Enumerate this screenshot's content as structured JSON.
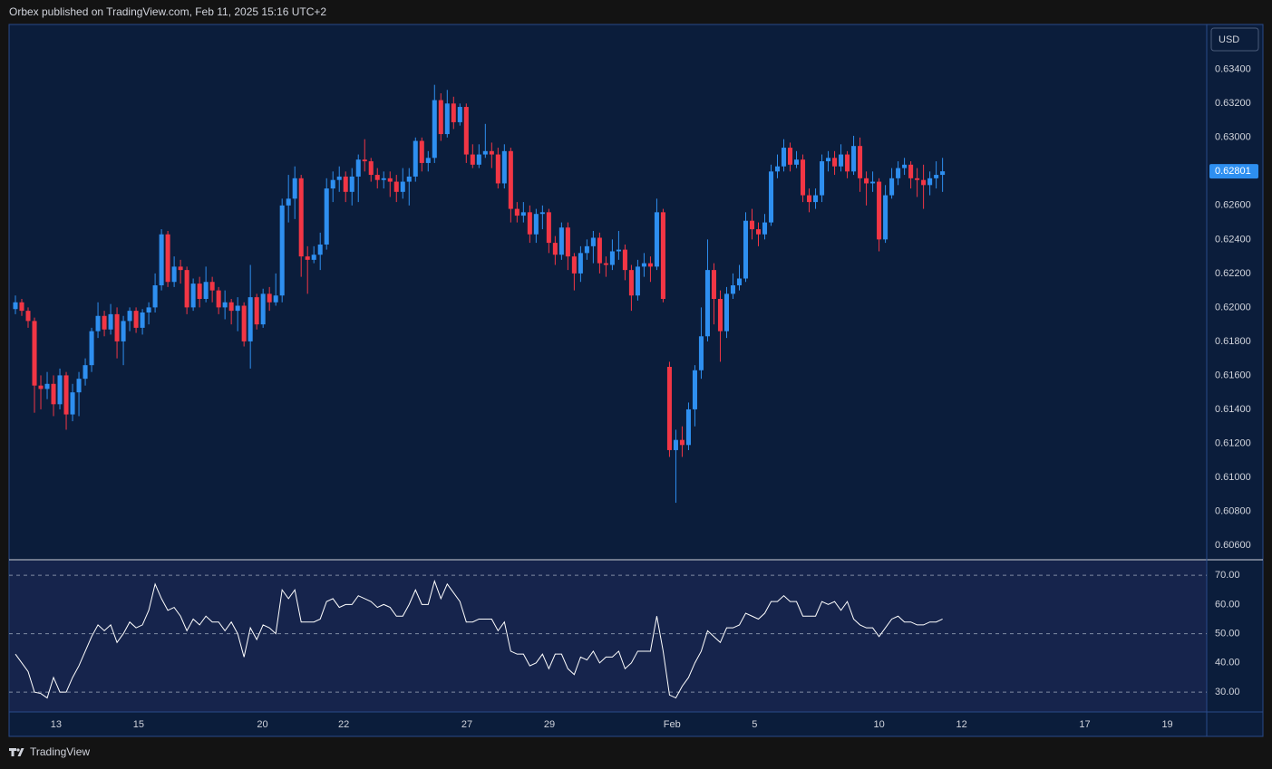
{
  "header": {
    "title": "Orbex published on TradingView.com, Feb 11, 2025 15:16 UTC+2",
    "currency": "USD",
    "brand": "TradingView"
  },
  "chart_data": [
    {
      "type": "candlestick",
      "up_color": "#2e8ff0",
      "down_color": "#f23645",
      "grid": false,
      "xlim": [
        -1,
        187.6
      ],
      "xticks": [
        {
          "value": 6.4,
          "label": "13"
        },
        {
          "value": 19.4,
          "label": "15"
        },
        {
          "value": 38.9,
          "label": "20"
        },
        {
          "value": 51.7,
          "label": "22"
        },
        {
          "value": 71.1,
          "label": "27"
        },
        {
          "value": 84.1,
          "label": "29"
        },
        {
          "value": 103.4,
          "label": "Feb"
        },
        {
          "value": 116.4,
          "label": "5"
        },
        {
          "value": 136,
          "label": "10"
        },
        {
          "value": 149,
          "label": "12"
        },
        {
          "value": 168.4,
          "label": "17"
        },
        {
          "value": 181.4,
          "label": "19"
        }
      ],
      "ylim": [
        0.6052,
        0.6366
      ],
      "yticks": [
        {
          "value": 0.634,
          "label": "0.63400"
        },
        {
          "value": 0.632,
          "label": "0.63200"
        },
        {
          "value": 0.63,
          "label": "0.63000"
        },
        {
          "value": 0.628,
          "label": "0.62800"
        },
        {
          "value": 0.626,
          "label": "0.62600"
        },
        {
          "value": 0.624,
          "label": "0.62400"
        },
        {
          "value": 0.622,
          "label": "0.62200"
        },
        {
          "value": 0.62,
          "label": "0.62000"
        },
        {
          "value": 0.618,
          "label": "0.61800"
        },
        {
          "value": 0.616,
          "label": "0.61600"
        },
        {
          "value": 0.614,
          "label": "0.61400"
        },
        {
          "value": 0.612,
          "label": "0.61200"
        },
        {
          "value": 0.61,
          "label": "0.61000"
        },
        {
          "value": 0.608,
          "label": "0.60800"
        },
        {
          "value": 0.606,
          "label": "0.60600"
        }
      ],
      "last_price_label": "0.62801",
      "open": [
        0.6199,
        0.6203,
        0.6198,
        0.6192,
        0.6154,
        0.6152,
        0.6155,
        0.6143,
        0.616,
        0.6137,
        0.615,
        0.6158,
        0.6166,
        0.6186,
        0.6195,
        0.6187,
        0.6196,
        0.618,
        0.6192,
        0.6198,
        0.6188,
        0.6197,
        0.62,
        0.6213,
        0.6243,
        0.6215,
        0.6224,
        0.6222,
        0.62,
        0.6214,
        0.6205,
        0.6215,
        0.621,
        0.62,
        0.6203,
        0.6198,
        0.6201,
        0.618,
        0.6206,
        0.619,
        0.6208,
        0.6203,
        0.6207,
        0.626,
        0.6264,
        0.6276,
        0.623,
        0.6228,
        0.6231,
        0.6237,
        0.627,
        0.6275,
        0.6277,
        0.6268,
        0.6277,
        0.6287,
        0.6286,
        0.6278,
        0.6275,
        0.6276,
        0.6274,
        0.6268,
        0.6274,
        0.6277,
        0.6298,
        0.6285,
        0.6288,
        0.6322,
        0.6302,
        0.632,
        0.6309,
        0.6318,
        0.629,
        0.6284,
        0.629,
        0.6292,
        0.629,
        0.6273,
        0.6292,
        0.6258,
        0.6254,
        0.6256,
        0.6243,
        0.6255,
        0.6256,
        0.6238,
        0.6231,
        0.6247,
        0.623,
        0.622,
        0.6232,
        0.6236,
        0.6241,
        0.6226,
        0.6225,
        0.6233,
        0.6234,
        0.6222,
        0.6207,
        0.6224,
        0.6226,
        0.6224,
        0.6256,
        0.6165,
        0.6116,
        0.6122,
        0.6119,
        0.614,
        0.6163,
        0.6183,
        0.6222,
        0.6205,
        0.6186,
        0.6208,
        0.6213,
        0.6217,
        0.6251,
        0.6246,
        0.6243,
        0.625,
        0.628,
        0.6283,
        0.6294,
        0.6284,
        0.6287,
        0.6266,
        0.6262,
        0.6266,
        0.6286,
        0.6288,
        0.6283,
        0.629,
        0.628,
        0.6295,
        0.6276,
        0.6273,
        0.6274,
        0.624,
        0.6266,
        0.6276,
        0.6282,
        0.6284,
        0.6276,
        0.6275,
        0.6272,
        0.6276,
        0.6278
      ],
      "high": [
        0.6207,
        0.6205,
        0.62,
        0.6194,
        0.616,
        0.6162,
        0.616,
        0.6164,
        0.6162,
        0.6155,
        0.6162,
        0.617,
        0.6188,
        0.6203,
        0.6198,
        0.6202,
        0.62,
        0.6195,
        0.62,
        0.62,
        0.6199,
        0.6203,
        0.622,
        0.6246,
        0.6245,
        0.623,
        0.6228,
        0.6224,
        0.6217,
        0.6218,
        0.6224,
        0.6218,
        0.6212,
        0.621,
        0.6205,
        0.6206,
        0.6203,
        0.6225,
        0.6208,
        0.6211,
        0.6212,
        0.622,
        0.6264,
        0.6278,
        0.6283,
        0.6278,
        0.6236,
        0.6236,
        0.6244,
        0.6276,
        0.628,
        0.6283,
        0.628,
        0.6282,
        0.629,
        0.6299,
        0.6288,
        0.6282,
        0.628,
        0.628,
        0.6278,
        0.6282,
        0.6282,
        0.63,
        0.63,
        0.6292,
        0.6331,
        0.6326,
        0.6328,
        0.6324,
        0.632,
        0.632,
        0.6296,
        0.6296,
        0.6308,
        0.6297,
        0.6294,
        0.6296,
        0.6294,
        0.6262,
        0.6262,
        0.626,
        0.6258,
        0.626,
        0.6258,
        0.6242,
        0.625,
        0.625,
        0.6232,
        0.6236,
        0.624,
        0.6245,
        0.6244,
        0.623,
        0.624,
        0.6245,
        0.6237,
        0.6225,
        0.6228,
        0.6232,
        0.623,
        0.6264,
        0.6258,
        0.6168,
        0.6128,
        0.613,
        0.6144,
        0.6166,
        0.62,
        0.624,
        0.6226,
        0.621,
        0.6212,
        0.622,
        0.6225,
        0.6256,
        0.6258,
        0.625,
        0.6255,
        0.6284,
        0.629,
        0.6299,
        0.6297,
        0.6292,
        0.629,
        0.627,
        0.627,
        0.629,
        0.6292,
        0.6292,
        0.6296,
        0.6292,
        0.6301,
        0.63,
        0.628,
        0.628,
        0.6276,
        0.6272,
        0.6282,
        0.6286,
        0.6288,
        0.6286,
        0.6282,
        0.6284,
        0.628,
        0.6286,
        0.6288
      ],
      "low": [
        0.6196,
        0.6195,
        0.6188,
        0.6138,
        0.614,
        0.6146,
        0.6136,
        0.614,
        0.6128,
        0.6133,
        0.6136,
        0.6154,
        0.6162,
        0.6182,
        0.6183,
        0.6184,
        0.617,
        0.6166,
        0.6186,
        0.6185,
        0.6184,
        0.619,
        0.6197,
        0.621,
        0.6212,
        0.6212,
        0.6214,
        0.6196,
        0.6198,
        0.62,
        0.6203,
        0.6203,
        0.6196,
        0.6193,
        0.619,
        0.6186,
        0.6177,
        0.6164,
        0.6187,
        0.6188,
        0.6198,
        0.6201,
        0.6203,
        0.625,
        0.6252,
        0.6218,
        0.6208,
        0.6226,
        0.6222,
        0.6234,
        0.6262,
        0.6268,
        0.6262,
        0.626,
        0.6262,
        0.628,
        0.6274,
        0.627,
        0.627,
        0.6265,
        0.6262,
        0.6264,
        0.626,
        0.6274,
        0.628,
        0.628,
        0.6285,
        0.6298,
        0.63,
        0.6305,
        0.6307,
        0.6285,
        0.6282,
        0.6282,
        0.6288,
        0.6282,
        0.627,
        0.627,
        0.625,
        0.625,
        0.625,
        0.6238,
        0.6238,
        0.6246,
        0.6232,
        0.6225,
        0.6228,
        0.6222,
        0.621,
        0.6215,
        0.6228,
        0.6226,
        0.622,
        0.6218,
        0.6222,
        0.6228,
        0.6216,
        0.6198,
        0.6204,
        0.6218,
        0.6215,
        0.6222,
        0.6203,
        0.6112,
        0.6085,
        0.6112,
        0.6116,
        0.613,
        0.6158,
        0.618,
        0.619,
        0.6168,
        0.6182,
        0.6205,
        0.621,
        0.6215,
        0.624,
        0.6236,
        0.624,
        0.6248,
        0.6276,
        0.628,
        0.628,
        0.6282,
        0.6262,
        0.6256,
        0.6258,
        0.6262,
        0.628,
        0.6278,
        0.628,
        0.6276,
        0.6278,
        0.6268,
        0.626,
        0.6268,
        0.6233,
        0.6238,
        0.6264,
        0.6272,
        0.6278,
        0.627,
        0.6265,
        0.6258,
        0.6266,
        0.627,
        0.6268
      ],
      "close": [
        0.6203,
        0.6198,
        0.6192,
        0.6154,
        0.6152,
        0.6155,
        0.6143,
        0.616,
        0.6137,
        0.615,
        0.6158,
        0.6166,
        0.6186,
        0.6195,
        0.6187,
        0.6196,
        0.618,
        0.6192,
        0.6198,
        0.6188,
        0.6197,
        0.62,
        0.6213,
        0.6243,
        0.6215,
        0.6224,
        0.6222,
        0.62,
        0.6214,
        0.6205,
        0.6215,
        0.621,
        0.62,
        0.6203,
        0.6198,
        0.6201,
        0.618,
        0.6206,
        0.619,
        0.6208,
        0.6203,
        0.6207,
        0.626,
        0.6264,
        0.6276,
        0.623,
        0.6228,
        0.6231,
        0.6237,
        0.627,
        0.6275,
        0.6277,
        0.6268,
        0.6277,
        0.6287,
        0.6286,
        0.6278,
        0.6275,
        0.6276,
        0.6274,
        0.6268,
        0.6274,
        0.6277,
        0.6298,
        0.6285,
        0.6288,
        0.6322,
        0.6302,
        0.632,
        0.6309,
        0.6318,
        0.629,
        0.6284,
        0.629,
        0.6292,
        0.629,
        0.6273,
        0.6292,
        0.6258,
        0.6254,
        0.6256,
        0.6243,
        0.6255,
        0.6256,
        0.6238,
        0.6231,
        0.6247,
        0.623,
        0.622,
        0.6232,
        0.6236,
        0.6241,
        0.6226,
        0.6225,
        0.6233,
        0.6234,
        0.6222,
        0.6207,
        0.6224,
        0.6226,
        0.6224,
        0.6256,
        0.6205,
        0.6116,
        0.6122,
        0.6119,
        0.614,
        0.6163,
        0.6183,
        0.6222,
        0.6205,
        0.6186,
        0.6208,
        0.6213,
        0.6217,
        0.6251,
        0.6246,
        0.6243,
        0.625,
        0.628,
        0.6283,
        0.6294,
        0.6284,
        0.6287,
        0.6266,
        0.6262,
        0.6266,
        0.6286,
        0.6288,
        0.6283,
        0.629,
        0.628,
        0.6295,
        0.6276,
        0.6273,
        0.6274,
        0.624,
        0.6266,
        0.6276,
        0.6282,
        0.6284,
        0.6276,
        0.6275,
        0.6272,
        0.6276,
        0.6278,
        0.62801
      ]
    },
    {
      "type": "line",
      "color": "#ffffff",
      "ylim": [
        23.2,
        75
      ],
      "yticks": [
        {
          "value": 30,
          "label": "30.00"
        },
        {
          "value": 40,
          "label": "40.00"
        },
        {
          "value": 50,
          "label": "50.00"
        },
        {
          "value": 60,
          "label": "60.00"
        },
        {
          "value": 70,
          "label": "70.00"
        }
      ],
      "hlines": [
        30,
        50,
        70
      ],
      "values": [
        43,
        40,
        37,
        30,
        29.5,
        28,
        35,
        30,
        30,
        35,
        39,
        44,
        49,
        53,
        51,
        53,
        47,
        50,
        54,
        52,
        53,
        58,
        67,
        62,
        58,
        59,
        56,
        51,
        55,
        53,
        56,
        54,
        54,
        51,
        54,
        50,
        42,
        52,
        48,
        53,
        52,
        50,
        65,
        62,
        65,
        54,
        54,
        54,
        55,
        61,
        62,
        59,
        60,
        60,
        63,
        62,
        61,
        59,
        60,
        59,
        56,
        56,
        60,
        65,
        60,
        60,
        68,
        62,
        67,
        64,
        61,
        54,
        54,
        55,
        55,
        55,
        51,
        54,
        44,
        43,
        43,
        39,
        40,
        43,
        38,
        43,
        43,
        38,
        36,
        42,
        41,
        44,
        40,
        42,
        42,
        44,
        38,
        40,
        44,
        44,
        44,
        56,
        44,
        29,
        28,
        32,
        35,
        40,
        44,
        51,
        49,
        47,
        52,
        52,
        53,
        57,
        56,
        55,
        57,
        61,
        61,
        63,
        61,
        61,
        56,
        56,
        56,
        61,
        60,
        61,
        58,
        61,
        55,
        53,
        52,
        52,
        49,
        52,
        55,
        56,
        54,
        54,
        53,
        53,
        54,
        54,
        55
      ]
    }
  ]
}
